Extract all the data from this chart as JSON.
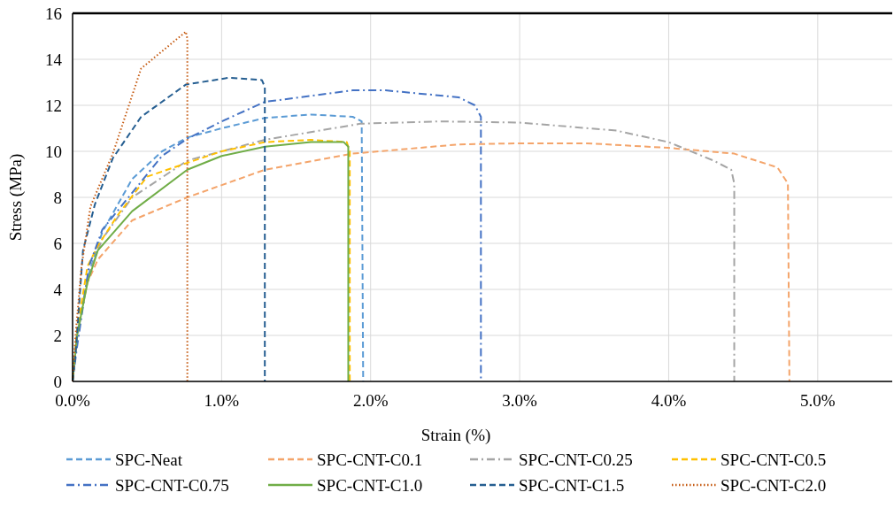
{
  "chart_data": {
    "type": "line",
    "xlabel": "Strain (%)",
    "ylabel": "Stress (MPa)",
    "xlim": [
      0,
      5.5
    ],
    "ylim": [
      0,
      16
    ],
    "xticks": [
      {
        "value": 0,
        "label": "0.0%"
      },
      {
        "value": 1,
        "label": "1.0%"
      },
      {
        "value": 2,
        "label": "2.0%"
      },
      {
        "value": 3,
        "label": "3.0%"
      },
      {
        "value": 4,
        "label": "4.0%"
      },
      {
        "value": 5,
        "label": "5.0%"
      }
    ],
    "yticks": [
      0,
      2,
      4,
      6,
      8,
      10,
      12,
      14,
      16
    ],
    "grid": true,
    "legend": "bottom",
    "marker": "none",
    "series": [
      {
        "name": "SPC-Neat",
        "color": "#5b9bd5",
        "line_style": "dashed",
        "x": [
          0,
          0.02,
          0.1,
          0.2,
          0.4,
          0.6,
          0.77,
          1.0,
          1.29,
          1.6,
          1.88,
          1.94,
          1.95
        ],
        "values": [
          0,
          1.5,
          4.5,
          6.5,
          8.8,
          10.0,
          10.6,
          11.0,
          11.45,
          11.6,
          11.5,
          11.3,
          0
        ]
      },
      {
        "name": "SPC-CNT-C0.1",
        "color": "#f4a46a",
        "line_style": "dashed",
        "x": [
          0,
          0.03,
          0.1,
          0.17,
          0.4,
          0.77,
          1.29,
          1.88,
          2.59,
          3.0,
          3.45,
          4.0,
          4.44,
          4.73,
          4.8,
          4.81
        ],
        "values": [
          0,
          2,
          4.3,
          5.3,
          7.0,
          8.0,
          9.2,
          9.9,
          10.3,
          10.35,
          10.35,
          10.15,
          9.9,
          9.3,
          8.6,
          0
        ]
      },
      {
        "name": "SPC-CNT-C0.25",
        "color": "#a5a5a5",
        "line_style": "dashdot",
        "x": [
          0,
          0.03,
          0.1,
          0.2,
          0.4,
          0.77,
          1.0,
          1.29,
          1.93,
          2.47,
          3.0,
          3.65,
          4.0,
          4.3,
          4.42,
          4.44,
          4.44
        ],
        "values": [
          0,
          2,
          4.5,
          6.2,
          8.0,
          9.6,
          10.0,
          10.5,
          11.2,
          11.3,
          11.25,
          10.9,
          10.4,
          9.6,
          9.2,
          8.6,
          0
        ]
      },
      {
        "name": "SPC-CNT-C0.5",
        "color": "#ffc000",
        "line_style": "dashed",
        "x": [
          0,
          0.03,
          0.1,
          0.17,
          0.3,
          0.5,
          0.77,
          1.0,
          1.29,
          1.6,
          1.84,
          1.86,
          1.86
        ],
        "values": [
          0,
          2.2,
          5,
          5.9,
          7.2,
          8.9,
          9.5,
          10.0,
          10.4,
          10.5,
          10.4,
          10.0,
          0
        ]
      },
      {
        "name": "SPC-CNT-C0.75",
        "color": "#4472c4",
        "line_style": "dashdot",
        "x": [
          0,
          0.03,
          0.11,
          0.2,
          0.4,
          0.6,
          0.77,
          1.0,
          1.29,
          1.88,
          2.1,
          2.59,
          2.7,
          2.74,
          2.74
        ],
        "values": [
          0,
          1.5,
          5.0,
          6.6,
          8.2,
          9.8,
          10.55,
          11.3,
          12.15,
          12.65,
          12.65,
          12.35,
          12.0,
          11.5,
          0
        ]
      },
      {
        "name": "SPC-CNT-C1.0",
        "color": "#70ad47",
        "line_style": "solid",
        "x": [
          0,
          0.03,
          0.1,
          0.17,
          0.4,
          0.77,
          1.0,
          1.29,
          1.6,
          1.82,
          1.85,
          1.85
        ],
        "values": [
          0,
          2,
          4.3,
          5.7,
          7.4,
          9.2,
          9.8,
          10.2,
          10.4,
          10.4,
          10.2,
          0
        ]
      },
      {
        "name": "SPC-CNT-C1.5",
        "color": "#255e91",
        "line_style": "dashed",
        "x": [
          0,
          0.02,
          0.07,
          0.15,
          0.27,
          0.46,
          0.76,
          1.05,
          1.27,
          1.29,
          1.29
        ],
        "values": [
          0,
          1.2,
          5.7,
          7.7,
          9.7,
          11.5,
          12.9,
          13.2,
          13.1,
          12.8,
          0
        ]
      },
      {
        "name": "SPC-CNT-C2.0",
        "color": "#c55a11",
        "line_style": "dotted",
        "x": [
          0,
          0.02,
          0.06,
          0.12,
          0.27,
          0.46,
          0.76,
          0.77,
          0.77
        ],
        "values": [
          0,
          2,
          5,
          7.6,
          9.9,
          13.6,
          15.2,
          14.9,
          0
        ]
      }
    ]
  }
}
